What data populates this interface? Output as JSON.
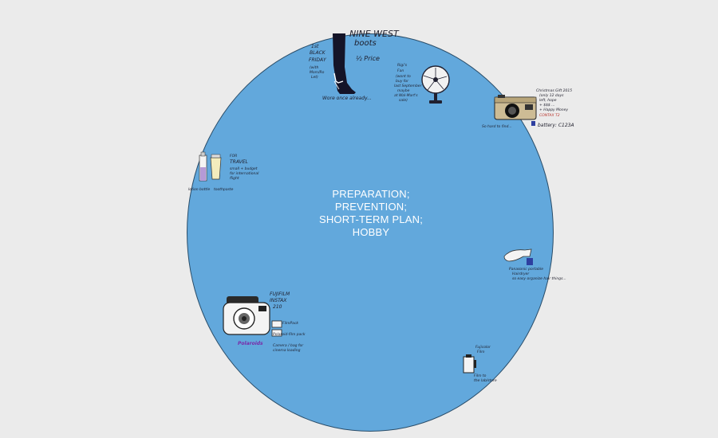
{
  "center": {
    "lines": [
      "PREPARATION;",
      "PREVENTION;",
      "SHORT-TERM PLAN;",
      "HOBBY"
    ]
  },
  "boots": {
    "brand_line1": "NINE WEST",
    "brand_line2": "boots",
    "price": "½ Price",
    "tag1": "1st",
    "tag2": "BLACK",
    "tag3": "FRIDAY",
    "tag4": "(with",
    "tag5": "Mom/Ro",
    "tag6": "Let)",
    "caption": "Wore once already..."
  },
  "fan": {
    "note1": "Rigi's",
    "note2": "Fan",
    "note3": "(wont to",
    "note4": "buy for",
    "note5": "last September",
    "note6": "maybe",
    "note7": "at Wal-Mart's",
    "note8": "sale)"
  },
  "camera": {
    "note1": "Christmas Gift 2015",
    "note2": "(only 12 days",
    "note3": "left, hope",
    "note4": "+ $$$ ...",
    "note5": "+ Happy Money",
    "note6": "CONTAX T2",
    "left_note": "So hard to find...",
    "battery": "battery: C123A"
  },
  "travel": {
    "line1": "FOR",
    "line2": "TRAVEL",
    "line3": "small + budget",
    "line4": "for international",
    "line5": "flight",
    "label_left": "lotion bottle",
    "label_right": "toothpaste"
  },
  "hairdryer": {
    "note1": "Panasonic portable",
    "note2": "Hairdryer",
    "note3": "so easy organize hair things..."
  },
  "instax": {
    "brand1": "FUJIFILM",
    "brand2": "INSTAX",
    "brand3": "210",
    "film_note": "FilmPack",
    "film_note2": "Polaroid-film pack",
    "bottom_label": "Polaroids",
    "case_note1": "Camera / bag for",
    "case_note2": "cinema loading"
  },
  "film": {
    "note1": "Fujicolor",
    "note2": "Film",
    "note3": "Film to",
    "note4": "the lab/store"
  }
}
